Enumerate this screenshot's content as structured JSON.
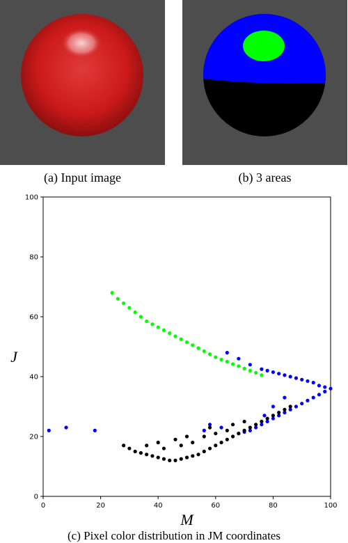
{
  "panels": [
    {
      "id": "a",
      "caption": "(a) Input image"
    },
    {
      "id": "b",
      "caption": "(b) 3 areas"
    }
  ],
  "colors": {
    "panel_bg": "#4d4d4d",
    "sphere_red": "#cc1a1a",
    "area_green": "#00ff00",
    "area_blue": "#0000ff",
    "area_black": "#000000"
  },
  "figure_c": {
    "caption": "(c) Pixel color distribution in JM coordinates"
  },
  "chart_data": {
    "type": "scatter",
    "xlabel": "M",
    "ylabel": "J",
    "xlim": [
      0,
      100
    ],
    "ylim": [
      0,
      100
    ],
    "xticks": [
      0,
      20,
      40,
      60,
      80,
      100
    ],
    "yticks": [
      0,
      20,
      40,
      60,
      80,
      100
    ],
    "grid": false,
    "series": [
      {
        "color": "#00ff00",
        "points": [
          [
            24,
            68
          ],
          [
            26,
            66
          ],
          [
            28,
            64.5
          ],
          [
            30,
            63
          ],
          [
            32,
            61.5
          ],
          [
            34,
            60
          ],
          [
            36,
            58.5
          ],
          [
            38,
            57.5
          ],
          [
            40,
            56.5
          ],
          [
            42,
            55.5
          ],
          [
            44,
            54.5
          ],
          [
            46,
            53.5
          ],
          [
            48,
            52.5
          ],
          [
            50,
            51.5
          ],
          [
            52,
            50.5
          ],
          [
            54,
            49.5
          ],
          [
            56,
            48.5
          ],
          [
            58,
            47.5
          ],
          [
            60,
            46.5
          ],
          [
            62,
            45.7
          ],
          [
            64,
            45
          ],
          [
            66,
            44.2
          ],
          [
            68,
            43.5
          ],
          [
            70,
            42.7
          ],
          [
            72,
            42
          ],
          [
            74,
            41.3
          ],
          [
            76,
            40.5
          ]
        ]
      },
      {
        "color": "#0000ff",
        "points": [
          [
            2,
            22
          ],
          [
            8,
            23
          ],
          [
            18,
            22
          ],
          [
            64,
            48
          ],
          [
            68,
            46
          ],
          [
            72,
            44
          ],
          [
            76,
            42.5
          ],
          [
            78,
            42
          ],
          [
            80,
            41.5
          ],
          [
            82,
            41
          ],
          [
            84,
            40.5
          ],
          [
            86,
            40
          ],
          [
            88,
            39.5
          ],
          [
            90,
            39
          ],
          [
            92,
            38.5
          ],
          [
            94,
            38
          ],
          [
            96,
            37
          ],
          [
            98,
            36.5
          ],
          [
            100,
            36
          ],
          [
            98,
            35
          ],
          [
            96,
            34
          ],
          [
            94,
            33
          ],
          [
            92,
            32
          ],
          [
            90,
            31
          ],
          [
            88,
            30
          ],
          [
            86,
            29
          ],
          [
            84,
            28
          ],
          [
            82,
            27
          ],
          [
            80,
            26
          ],
          [
            78,
            25
          ],
          [
            76,
            24
          ],
          [
            74,
            23
          ],
          [
            72,
            22
          ],
          [
            70,
            21.5
          ],
          [
            68,
            21
          ],
          [
            62,
            23
          ],
          [
            56,
            22
          ],
          [
            58,
            24
          ],
          [
            77,
            27
          ],
          [
            80,
            30
          ],
          [
            84,
            33
          ]
        ]
      },
      {
        "color": "#000000",
        "points": [
          [
            28,
            17
          ],
          [
            30,
            16
          ],
          [
            32,
            15
          ],
          [
            34,
            14.5
          ],
          [
            36,
            14
          ],
          [
            38,
            13.5
          ],
          [
            40,
            13
          ],
          [
            42,
            12.5
          ],
          [
            44,
            12
          ],
          [
            46,
            12
          ],
          [
            48,
            12.5
          ],
          [
            50,
            13
          ],
          [
            52,
            13.5
          ],
          [
            54,
            14
          ],
          [
            56,
            15
          ],
          [
            58,
            16
          ],
          [
            60,
            17
          ],
          [
            62,
            18
          ],
          [
            64,
            19
          ],
          [
            66,
            20
          ],
          [
            68,
            21
          ],
          [
            70,
            22
          ],
          [
            72,
            23
          ],
          [
            74,
            24
          ],
          [
            76,
            25
          ],
          [
            78,
            26
          ],
          [
            80,
            27
          ],
          [
            82,
            28
          ],
          [
            84,
            29
          ],
          [
            86,
            30
          ],
          [
            36,
            17
          ],
          [
            42,
            16
          ],
          [
            48,
            17
          ],
          [
            52,
            18
          ],
          [
            56,
            20
          ],
          [
            60,
            21
          ],
          [
            64,
            22
          ],
          [
            70,
            25
          ],
          [
            40,
            18
          ],
          [
            46,
            19
          ],
          [
            50,
            20
          ],
          [
            58,
            23
          ],
          [
            66,
            24
          ]
        ]
      }
    ]
  }
}
